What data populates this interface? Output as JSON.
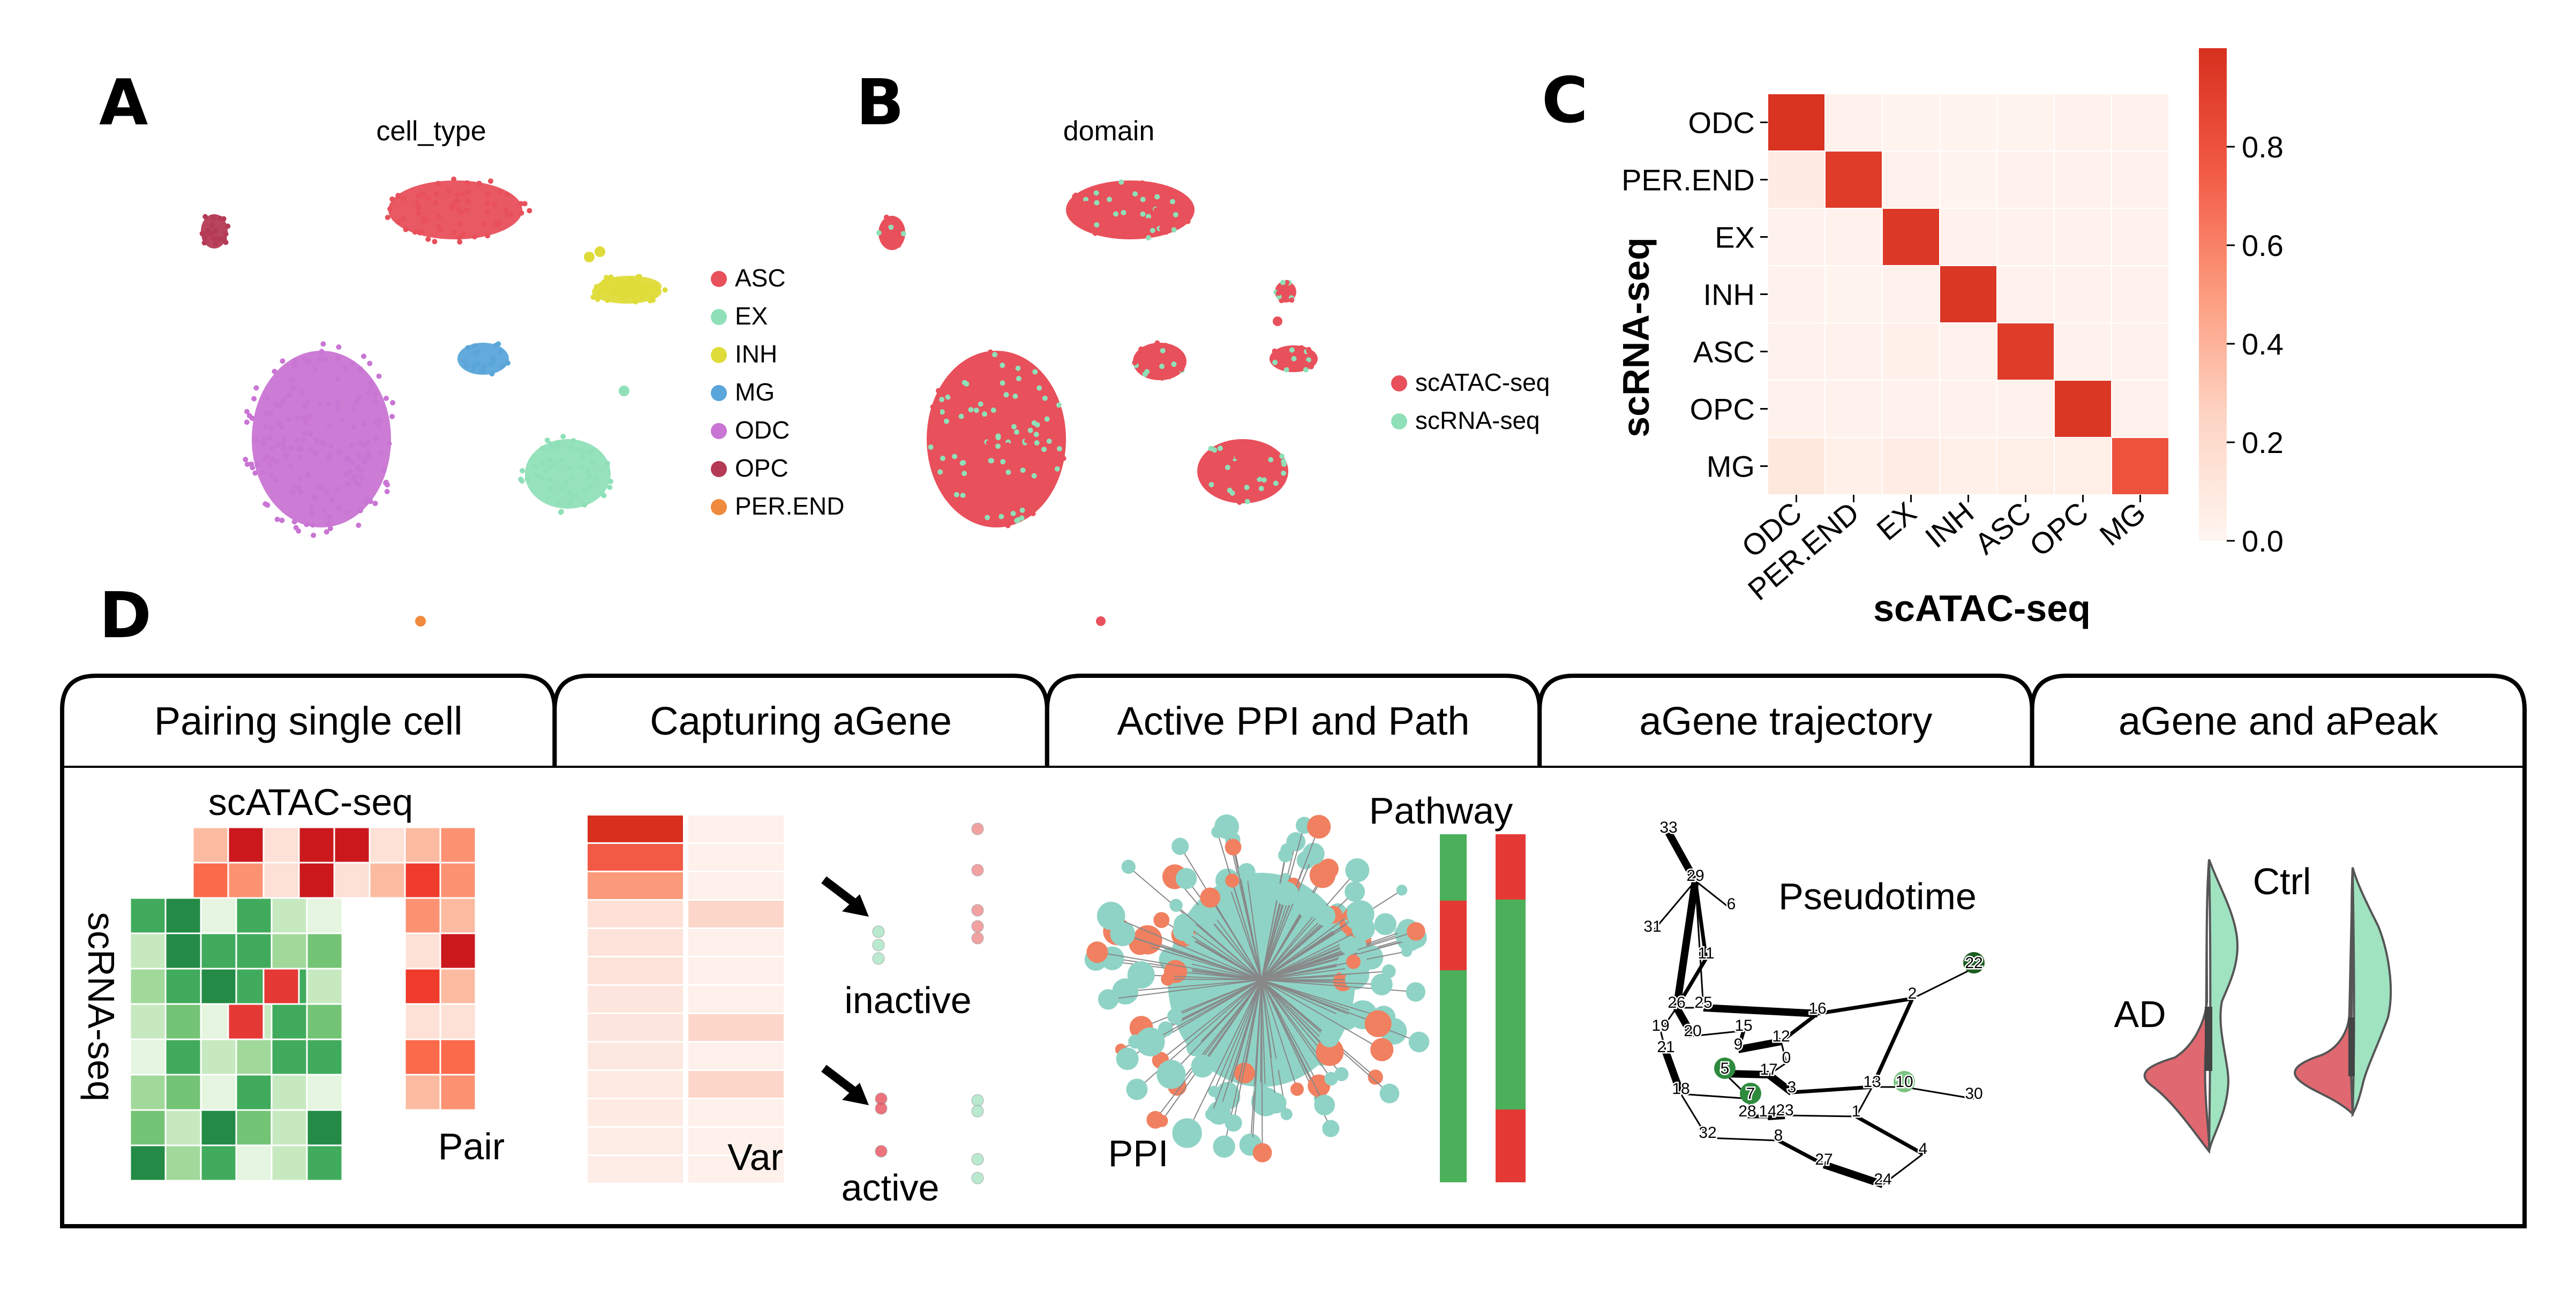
{
  "panels": {
    "a": {
      "letter": "A",
      "title": "cell_type",
      "legend": [
        {
          "label": "ASC",
          "color": "#e8505b"
        },
        {
          "label": "EX",
          "color": "#8fe0b8"
        },
        {
          "label": "INH",
          "color": "#dfdc3a"
        },
        {
          "label": "MG",
          "color": "#5aa6da"
        },
        {
          "label": "ODC",
          "color": "#c975d3"
        },
        {
          "label": "OPC",
          "color": "#b43a55"
        },
        {
          "label": "PER.END",
          "color": "#f08a3c"
        }
      ]
    },
    "b": {
      "letter": "B",
      "title": "domain",
      "legend": [
        {
          "label": "scATAC-seq",
          "color": "#e8505b"
        },
        {
          "label": "scRNA-seq",
          "color": "#8fe0b8"
        }
      ]
    },
    "c": {
      "letter": "C"
    },
    "d": {
      "letter": "D"
    }
  },
  "chart_data": {
    "type": "heatmap",
    "ylabel": "scRNA-seq",
    "xlabel": "scATAC-seq",
    "rows": [
      "ODC",
      "PER.END",
      "EX",
      "INH",
      "ASC",
      "OPC",
      "MG"
    ],
    "cols": [
      "ODC",
      "PER.END",
      "EX",
      "INH",
      "ASC",
      "OPC",
      "MG"
    ],
    "values": [
      [
        0.98,
        0.02,
        0.01,
        0.01,
        0.01,
        0.02,
        0.02
      ],
      [
        0.08,
        0.93,
        0.02,
        0.01,
        0.02,
        0.02,
        0.02
      ],
      [
        0.02,
        0.02,
        0.95,
        0.03,
        0.02,
        0.02,
        0.02
      ],
      [
        0.02,
        0.01,
        0.03,
        0.96,
        0.02,
        0.02,
        0.02
      ],
      [
        0.02,
        0.02,
        0.04,
        0.03,
        0.93,
        0.03,
        0.02
      ],
      [
        0.02,
        0.02,
        0.03,
        0.02,
        0.03,
        0.96,
        0.02
      ],
      [
        0.1,
        0.04,
        0.06,
        0.04,
        0.05,
        0.05,
        0.8
      ]
    ],
    "colorbar": {
      "ticks": [
        "0.0",
        "0.2",
        "0.4",
        "0.6",
        "0.8"
      ],
      "range": [
        0,
        1
      ],
      "low_color": "#fff5f0",
      "high_color": "#d7301f"
    }
  },
  "workflow": {
    "tabs": [
      "Pairing single cell",
      "Capturing aGene",
      "Active PPI and Path",
      "aGene trajectory",
      "aGene and aPeak"
    ],
    "pairing": {
      "top_label": "scATAC-seq",
      "side_label": "scRNA-seq",
      "pair_label": "Pair"
    },
    "capturing": {
      "var_label": "Var",
      "inactive_label": "inactive",
      "active_label": "active"
    },
    "ppi": {
      "pathway_label": "Pathway",
      "ppi_label": "PPI"
    },
    "trajectory": {
      "pseudotime_label": "Pseudotime",
      "node_labels": [
        "33",
        "29",
        "6",
        "31",
        "11",
        "26",
        "25",
        "16",
        "2",
        "22",
        "19",
        "20",
        "15",
        "21",
        "9",
        "12",
        "0",
        "5",
        "17",
        "3",
        "13",
        "10",
        "30",
        "18",
        "7",
        "28",
        "14",
        "23",
        "1",
        "32",
        "8",
        "27",
        "4",
        "24"
      ]
    },
    "violin": {
      "ad_label": "AD",
      "ctrl_label": "Ctrl"
    }
  },
  "colors": {
    "red": "#e8505b",
    "mint": "#8fe0b8",
    "green_dark": "#2e8b3e",
    "heat_high": "#d7301f",
    "teal": "#8fd3c6",
    "orange": "#f08060"
  }
}
